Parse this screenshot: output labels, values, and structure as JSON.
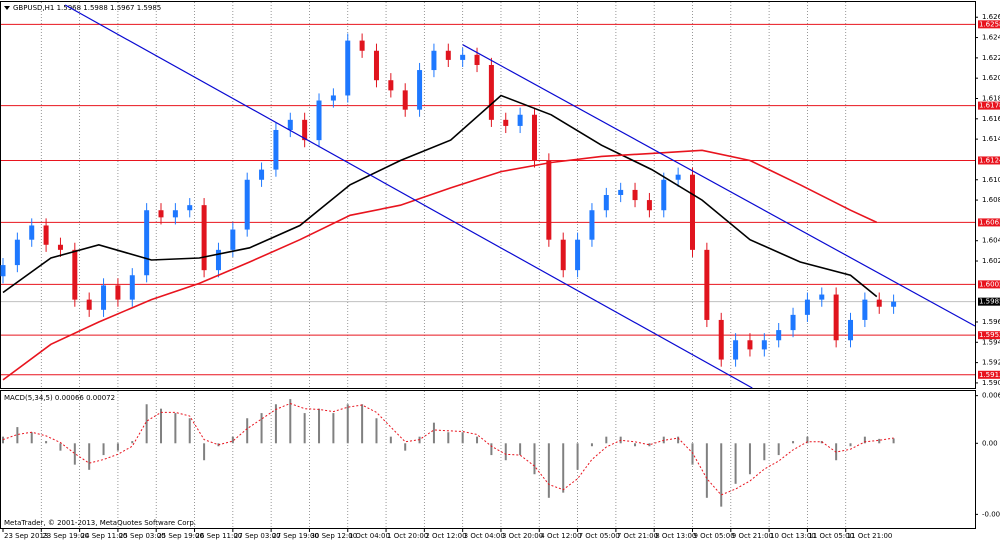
{
  "chart_data": [
    {
      "type": "candlestick",
      "title": "GBPUSD,H1  1.5968 1.5988 1.5967 1.5985",
      "footer": "MetaTrader, © 2001-2013, MetaQuotes Software Corp.",
      "x": [
        0,
        6,
        12,
        18,
        24,
        30,
        36,
        42,
        48,
        54,
        60,
        66,
        72,
        78,
        84,
        90,
        96,
        102,
        108,
        114,
        120,
        126,
        132,
        138,
        144,
        150,
        156,
        162,
        168,
        174,
        180,
        186,
        192,
        198,
        204,
        210,
        216,
        222,
        228,
        234,
        240,
        246,
        252,
        258,
        264,
        270,
        276,
        282,
        288,
        294,
        300,
        306,
        312,
        318,
        324,
        330,
        336,
        342,
        348,
        354,
        360,
        366,
        372
      ],
      "open": [
        1.601,
        1.6021,
        1.6046,
        1.606,
        1.6041,
        1.6036,
        1.5987,
        1.5977,
        1.6001,
        1.5987,
        1.6011,
        1.6075,
        1.6068,
        1.6075,
        1.608,
        1.6016,
        1.6036,
        1.6056,
        1.6105,
        1.6115,
        1.6154,
        1.6164,
        1.6144,
        1.6183,
        1.6188,
        1.6242,
        1.6232,
        1.6203,
        1.6193,
        1.6174,
        1.6213,
        1.6232,
        1.6223,
        1.6228,
        1.6218,
        1.6164,
        1.6158,
        1.6169,
        1.6124,
        1.6046,
        1.6016,
        1.6046,
        1.6075,
        1.609,
        1.6095,
        1.6085,
        1.6075,
        1.6105,
        1.611,
        1.6036,
        1.5967,
        1.5928,
        1.5947,
        1.5938,
        1.5947,
        1.5957,
        1.5972,
        1.5987,
        1.5992,
        1.5947,
        1.5967,
        1.5987,
        1.598
      ],
      "high": [
        1.6028,
        1.6053,
        1.6067,
        1.6067,
        1.6048,
        1.6043,
        1.5994,
        1.6008,
        1.6008,
        1.6018,
        1.6082,
        1.6082,
        1.6082,
        1.6087,
        1.6087,
        1.6043,
        1.6063,
        1.6112,
        1.6122,
        1.6161,
        1.6171,
        1.6171,
        1.619,
        1.6195,
        1.6249,
        1.6249,
        1.6239,
        1.621,
        1.62,
        1.622,
        1.6239,
        1.6239,
        1.6235,
        1.6235,
        1.6225,
        1.6171,
        1.6176,
        1.6176,
        1.6131,
        1.6053,
        1.6053,
        1.6082,
        1.6097,
        1.6102,
        1.6102,
        1.6092,
        1.6112,
        1.6117,
        1.6117,
        1.6043,
        1.5974,
        1.5954,
        1.5954,
        1.5954,
        1.5964,
        1.5979,
        1.5994,
        1.5999,
        1.5999,
        1.5974,
        1.5994,
        1.5994,
        1.5992
      ],
      "low": [
        1.6003,
        1.6014,
        1.6039,
        1.6034,
        1.6029,
        1.598,
        1.597,
        1.597,
        1.598,
        1.598,
        1.6004,
        1.6061,
        1.6061,
        1.6068,
        1.6009,
        1.6009,
        1.6029,
        1.6049,
        1.6098,
        1.6108,
        1.6147,
        1.6137,
        1.6137,
        1.6176,
        1.6181,
        1.6225,
        1.6196,
        1.6186,
        1.6167,
        1.6167,
        1.6206,
        1.6216,
        1.6216,
        1.6211,
        1.6157,
        1.6151,
        1.6151,
        1.6117,
        1.6039,
        1.6009,
        1.6009,
        1.6039,
        1.6068,
        1.6083,
        1.6078,
        1.6068,
        1.6068,
        1.6098,
        1.6029,
        1.596,
        1.5921,
        1.5921,
        1.5931,
        1.5931,
        1.594,
        1.595,
        1.5965,
        1.598,
        1.594,
        1.594,
        1.596,
        1.5973,
        1.5973
      ],
      "close": [
        1.6021,
        1.6046,
        1.606,
        1.6041,
        1.6036,
        1.5987,
        1.5977,
        1.6001,
        1.5987,
        1.6011,
        1.6075,
        1.6068,
        1.6075,
        1.608,
        1.6016,
        1.6036,
        1.6056,
        1.6105,
        1.6115,
        1.6154,
        1.6164,
        1.6144,
        1.6183,
        1.6188,
        1.6242,
        1.6232,
        1.6203,
        1.6193,
        1.6174,
        1.6213,
        1.6232,
        1.6223,
        1.6228,
        1.6218,
        1.6164,
        1.6158,
        1.6169,
        1.6124,
        1.6046,
        1.6016,
        1.6046,
        1.6075,
        1.609,
        1.6095,
        1.6085,
        1.6075,
        1.6105,
        1.611,
        1.6036,
        1.5967,
        1.5928,
        1.5947,
        1.5938,
        1.5947,
        1.5957,
        1.5972,
        1.5987,
        1.5992,
        1.5947,
        1.5967,
        1.5987,
        1.598,
        1.5985
      ],
      "up_color": "#1e78ff",
      "down_color": "#e0141e",
      "lines": [
        {
          "color": "#000000",
          "x": [
            0,
            20,
            40,
            62,
            82,
            103,
            124,
            145,
            166,
            187,
            208,
            229,
            250,
            271,
            292,
            312,
            333,
            354,
            365
          ],
          "values": [
            1.5994,
            1.6028,
            1.6041,
            1.6026,
            1.6028,
            1.6038,
            1.606,
            1.61,
            1.6124,
            1.6144,
            1.6188,
            1.6169,
            1.6139,
            1.6115,
            1.6085,
            1.6046,
            1.6024,
            1.6011,
            1.599
          ]
        },
        {
          "color": "#e8141e",
          "x": [
            0,
            20,
            40,
            62,
            82,
            103,
            124,
            145,
            166,
            187,
            208,
            229,
            250,
            271,
            292,
            312,
            333,
            354,
            365
          ],
          "values": [
            1.5908,
            1.5943,
            1.5965,
            1.5987,
            1.6003,
            1.6024,
            1.6046,
            1.607,
            1.608,
            1.6097,
            1.6113,
            1.6122,
            1.6128,
            1.6131,
            1.6134,
            1.6124,
            1.61,
            1.6075,
            1.6063
          ]
        }
      ],
      "trendlines": [
        {
          "color": "#0a0ad2",
          "x": [
            26,
            313
          ],
          "values": [
            1.6277,
            1.59
          ]
        },
        {
          "color": "#0a0ad2",
          "x": [
            192,
            406
          ],
          "values": [
            1.6238,
            1.5961
          ]
        }
      ],
      "levels": [
        1.6258,
        1.6178,
        1.6124,
        1.6063,
        1.6002,
        1.5952,
        1.5913
      ],
      "level_color": "#e8141e",
      "current_price": 1.5985,
      "xlim": [
        0,
        406
      ],
      "ylim": [
        1.59,
        1.628
      ],
      "yticks": [
        1.5905,
        1.5925,
        1.5945,
        1.5965,
        1.6025,
        1.6045,
        1.6085,
        1.6105,
        1.6145,
        1.6165,
        1.6185,
        1.6205,
        1.6225,
        1.6245,
        1.6265
      ],
      "xticks": [
        {
          "value": 0,
          "label": "23 Sep 2013"
        },
        {
          "value": 16,
          "label": "23 Sep 19:00"
        },
        {
          "value": 32,
          "label": "24 Sep 11:00"
        },
        {
          "value": 48,
          "label": "25 Sep 03:00"
        },
        {
          "value": 64,
          "label": "25 Sep 19:00"
        },
        {
          "value": 80,
          "label": "26 Sep 11:00"
        },
        {
          "value": 96,
          "label": "27 Sep 03:00"
        },
        {
          "value": 112,
          "label": "27 Sep 19:00"
        },
        {
          "value": 128,
          "label": "30 Sep 12:00"
        },
        {
          "value": 144,
          "label": "1 Oct 04:00"
        },
        {
          "value": 160,
          "label": "1 Oct 20:00"
        },
        {
          "value": 176,
          "label": "2 Oct 12:00"
        },
        {
          "value": 192,
          "label": "3 Oct 04:00"
        },
        {
          "value": 208,
          "label": "3 Oct 20:00"
        },
        {
          "value": 224,
          "label": "4 Oct 12:00"
        },
        {
          "value": 240,
          "label": "7 Oct 05:00"
        },
        {
          "value": 256,
          "label": "7 Oct 21:00"
        },
        {
          "value": 272,
          "label": "8 Oct 13:00"
        },
        {
          "value": 288,
          "label": "9 Oct 05:00"
        },
        {
          "value": 304,
          "label": "9 Oct 21:00"
        },
        {
          "value": 320,
          "label": "10 Oct 13:00"
        },
        {
          "value": 336,
          "label": "11 Oct 05:00"
        },
        {
          "value": 352,
          "label": "11 Oct 21:00"
        }
      ],
      "grid": true
    },
    {
      "type": "macd",
      "title": "MACD(5,34,5) 0.00066 0.00072",
      "x": [
        0,
        6,
        12,
        18,
        24,
        30,
        36,
        42,
        48,
        54,
        60,
        66,
        72,
        78,
        84,
        90,
        96,
        102,
        108,
        114,
        120,
        126,
        132,
        138,
        144,
        150,
        156,
        162,
        168,
        174,
        180,
        186,
        192,
        198,
        204,
        210,
        216,
        222,
        228,
        234,
        240,
        246,
        252,
        258,
        264,
        270,
        276,
        282,
        288,
        294,
        300,
        306,
        312,
        318,
        324,
        330,
        336,
        342,
        348,
        354,
        360,
        366,
        372
      ],
      "values": [
        0.0009,
        0.0022,
        0.0015,
        0.0003,
        -0.001,
        -0.0029,
        -0.0036,
        -0.0016,
        -0.001,
        0.0003,
        0.0053,
        0.0047,
        0.0041,
        0.0034,
        -0.0023,
        -0.0004,
        0.0009,
        0.0034,
        0.0041,
        0.0053,
        0.006,
        0.0041,
        0.0047,
        0.0041,
        0.0053,
        0.0053,
        0.0034,
        0.0009,
        -0.001,
        0.0009,
        0.0028,
        0.0015,
        0.0015,
        0.0009,
        -0.0016,
        -0.0023,
        -0.0016,
        -0.0042,
        -0.0074,
        -0.0067,
        -0.0036,
        -0.0004,
        0.0009,
        0.0009,
        -0.0004,
        -0.0004,
        0.0009,
        0.0009,
        -0.0029,
        -0.0074,
        -0.0086,
        -0.0055,
        -0.0042,
        -0.0023,
        -0.0016,
        0.0003,
        0.0009,
        0.0003,
        -0.0023,
        -0.0004,
        0.0009,
        0.0006,
        0.00066
      ],
      "signal": [
        0.0005,
        0.0012,
        0.0015,
        0.001,
        0.0001,
        -0.0014,
        -0.0027,
        -0.0022,
        -0.0015,
        -0.0004,
        0.003,
        0.0042,
        0.0042,
        0.0037,
        0.0005,
        -0.0002,
        0.0003,
        0.002,
        0.0033,
        0.0046,
        0.0054,
        0.0047,
        0.0046,
        0.0043,
        0.0049,
        0.0052,
        0.0042,
        0.0022,
        0.0002,
        0.0005,
        0.0018,
        0.0017,
        0.0016,
        0.0012,
        -0.0004,
        -0.0015,
        -0.0016,
        -0.0031,
        -0.0056,
        -0.0063,
        -0.0048,
        -0.0022,
        -0.0005,
        0.0004,
        0.0002,
        -0.0002,
        0.0004,
        0.0007,
        -0.0013,
        -0.0048,
        -0.007,
        -0.0062,
        -0.0051,
        -0.0035,
        -0.0024,
        -0.0009,
        0.0002,
        0.0002,
        -0.0012,
        -0.0008,
        0.0002,
        0.0004,
        0.00072
      ],
      "color": "#808080",
      "signal_color": "#e8141e",
      "xlim": [
        0,
        406
      ],
      "ylim": [
        -0.0115,
        0.0071
      ],
      "yticks": [
        0.00647,
        {
          "value": 0,
          "label": "0.00"
        },
        -0.00965
      ]
    }
  ]
}
